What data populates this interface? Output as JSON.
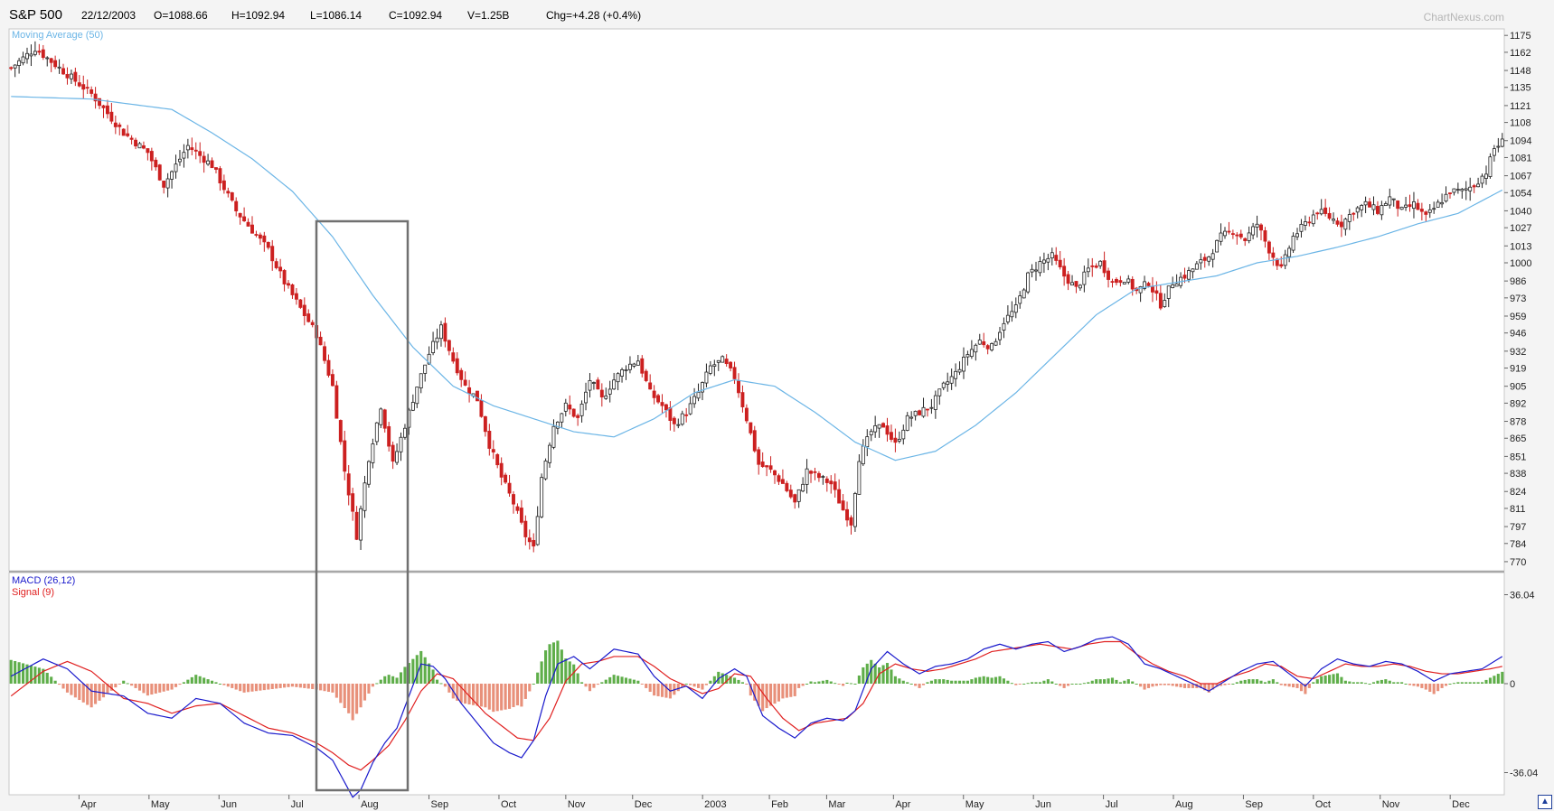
{
  "header": {
    "symbol": "S&P 500",
    "date": "22/12/2003",
    "open": "O=1088.66",
    "high": "H=1092.94",
    "low": "L=1086.14",
    "close": "C=1092.94",
    "volume": "V=1.25B",
    "change": "Chg=+4.28 (+0.4%)"
  },
  "watermark": "ChartNexus.com",
  "colors": {
    "down": "#cc2020",
    "up_border": "#222222",
    "moving_average": "#6bb5e6",
    "macd": "#1a1acc",
    "signal": "#e02020",
    "hist_pos": "#5fae4a",
    "hist_neg": "#e8907a",
    "highlight_box": "#707070"
  },
  "chart_data": [
    {
      "type": "candlestick",
      "legend": "Moving Average (50)",
      "ylim": [
        763,
        1180
      ],
      "yticks": [
        1175,
        1162,
        1148,
        1135,
        1121,
        1108,
        1094,
        1081,
        1067,
        1054,
        1040,
        1027,
        1013,
        1000,
        986,
        973,
        959,
        946,
        932,
        919,
        905,
        892,
        878,
        865,
        851,
        838,
        824,
        811,
        797,
        784,
        770
      ],
      "x_labels": [
        "Apr",
        "May",
        "Jun",
        "Jul",
        "Aug",
        "Sep",
        "Oct",
        "Nov",
        "Dec",
        "2003",
        "Feb",
        "Mar",
        "Apr",
        "May",
        "Jun",
        "Jul",
        "Aug",
        "Sep",
        "Oct",
        "Nov",
        "Dec"
      ],
      "close_keypoints": [
        [
          0,
          1150
        ],
        [
          6,
          1165
        ],
        [
          12,
          1150
        ],
        [
          20,
          1130
        ],
        [
          28,
          1100
        ],
        [
          34,
          1085
        ],
        [
          38,
          1060
        ],
        [
          44,
          1090
        ],
        [
          50,
          1075
        ],
        [
          56,
          1040
        ],
        [
          60,
          1025
        ],
        [
          64,
          1010
        ],
        [
          68,
          985
        ],
        [
          72,
          965
        ],
        [
          76,
          945
        ],
        [
          80,
          905
        ],
        [
          83,
          840
        ],
        [
          86,
          790
        ],
        [
          89,
          850
        ],
        [
          92,
          890
        ],
        [
          95,
          845
        ],
        [
          98,
          875
        ],
        [
          101,
          905
        ],
        [
          104,
          930
        ],
        [
          107,
          950
        ],
        [
          110,
          925
        ],
        [
          113,
          905
        ],
        [
          116,
          895
        ],
        [
          119,
          860
        ],
        [
          122,
          835
        ],
        [
          125,
          815
        ],
        [
          128,
          790
        ],
        [
          130,
          780
        ],
        [
          132,
          835
        ],
        [
          135,
          875
        ],
        [
          138,
          890
        ],
        [
          141,
          880
        ],
        [
          144,
          910
        ],
        [
          147,
          895
        ],
        [
          150,
          910
        ],
        [
          153,
          920
        ],
        [
          156,
          925
        ],
        [
          159,
          900
        ],
        [
          162,
          890
        ],
        [
          165,
          875
        ],
        [
          168,
          885
        ],
        [
          171,
          900
        ],
        [
          174,
          920
        ],
        [
          177,
          925
        ],
        [
          180,
          912
        ],
        [
          183,
          880
        ],
        [
          186,
          845
        ],
        [
          189,
          840
        ],
        [
          192,
          830
        ],
        [
          195,
          815
        ],
        [
          198,
          840
        ],
        [
          201,
          835
        ],
        [
          204,
          830
        ],
        [
          207,
          810
        ],
        [
          209,
          800
        ],
        [
          211,
          850
        ],
        [
          214,
          870
        ],
        [
          217,
          875
        ],
        [
          220,
          860
        ],
        [
          223,
          880
        ],
        [
          226,
          885
        ],
        [
          229,
          890
        ],
        [
          232,
          905
        ],
        [
          235,
          915
        ],
        [
          238,
          930
        ],
        [
          241,
          940
        ],
        [
          244,
          935
        ],
        [
          247,
          955
        ],
        [
          250,
          965
        ],
        [
          253,
          990
        ],
        [
          256,
          1000
        ],
        [
          259,
          1005
        ],
        [
          262,
          990
        ],
        [
          265,
          980
        ],
        [
          268,
          995
        ],
        [
          271,
          1000
        ],
        [
          274,
          985
        ],
        [
          277,
          988
        ],
        [
          280,
          978
        ],
        [
          283,
          985
        ],
        [
          286,
          968
        ],
        [
          289,
          985
        ],
        [
          292,
          990
        ],
        [
          295,
          998
        ],
        [
          298,
          1005
        ],
        [
          301,
          1020
        ],
        [
          304,
          1025
        ],
        [
          307,
          1018
        ],
        [
          310,
          1030
        ],
        [
          313,
          1010
        ],
        [
          316,
          995
        ],
        [
          319,
          1020
        ],
        [
          322,
          1030
        ],
        [
          325,
          1040
        ],
        [
          328,
          1035
        ],
        [
          331,
          1030
        ],
        [
          334,
          1040
        ],
        [
          337,
          1045
        ],
        [
          340,
          1040
        ],
        [
          343,
          1050
        ],
        [
          346,
          1040
        ],
        [
          349,
          1045
        ],
        [
          352,
          1035
        ],
        [
          355,
          1045
        ],
        [
          358,
          1055
        ],
        [
          361,
          1055
        ],
        [
          364,
          1060
        ],
        [
          367,
          1070
        ],
        [
          369,
          1088
        ],
        [
          371,
          1093
        ]
      ],
      "moving_average_keypoints": [
        [
          0,
          1128
        ],
        [
          20,
          1126
        ],
        [
          40,
          1118
        ],
        [
          50,
          1100
        ],
        [
          60,
          1080
        ],
        [
          70,
          1055
        ],
        [
          80,
          1020
        ],
        [
          90,
          975
        ],
        [
          100,
          935
        ],
        [
          110,
          905
        ],
        [
          120,
          890
        ],
        [
          130,
          880
        ],
        [
          140,
          870
        ],
        [
          150,
          866
        ],
        [
          160,
          880
        ],
        [
          170,
          900
        ],
        [
          180,
          910
        ],
        [
          190,
          905
        ],
        [
          200,
          885
        ],
        [
          210,
          862
        ],
        [
          220,
          848
        ],
        [
          230,
          855
        ],
        [
          240,
          875
        ],
        [
          250,
          900
        ],
        [
          260,
          930
        ],
        [
          270,
          960
        ],
        [
          280,
          980
        ],
        [
          290,
          985
        ],
        [
          300,
          990
        ],
        [
          310,
          1000
        ],
        [
          320,
          1005
        ],
        [
          330,
          1012
        ],
        [
          340,
          1020
        ],
        [
          350,
          1030
        ],
        [
          360,
          1038
        ],
        [
          371,
          1056
        ]
      ]
    },
    {
      "type": "line",
      "legend": [
        "MACD (26,12)",
        "Signal (9)"
      ],
      "ylim": [
        -45,
        45
      ],
      "yticks": [
        36.04,
        0,
        -36.04
      ],
      "macd_keypoints": [
        [
          0,
          3
        ],
        [
          8,
          10
        ],
        [
          14,
          6
        ],
        [
          20,
          -3
        ],
        [
          28,
          -5
        ],
        [
          34,
          -12
        ],
        [
          40,
          -14
        ],
        [
          46,
          -6
        ],
        [
          52,
          -8
        ],
        [
          58,
          -16
        ],
        [
          64,
          -20
        ],
        [
          70,
          -21
        ],
        [
          76,
          -26
        ],
        [
          80,
          -31
        ],
        [
          83,
          -40
        ],
        [
          85,
          -46
        ],
        [
          87,
          -43
        ],
        [
          90,
          -32
        ],
        [
          93,
          -24
        ],
        [
          96,
          -18
        ],
        [
          99,
          -5
        ],
        [
          102,
          8
        ],
        [
          105,
          7
        ],
        [
          108,
          2
        ],
        [
          112,
          -8
        ],
        [
          116,
          -16
        ],
        [
          120,
          -24
        ],
        [
          124,
          -28
        ],
        [
          127,
          -30
        ],
        [
          130,
          -23
        ],
        [
          133,
          -5
        ],
        [
          136,
          8
        ],
        [
          140,
          11
        ],
        [
          144,
          6
        ],
        [
          150,
          14
        ],
        [
          156,
          12
        ],
        [
          160,
          3
        ],
        [
          164,
          -3
        ],
        [
          168,
          -1
        ],
        [
          172,
          -6
        ],
        [
          176,
          2
        ],
        [
          180,
          6
        ],
        [
          183,
          3
        ],
        [
          187,
          -13
        ],
        [
          191,
          -18
        ],
        [
          195,
          -22
        ],
        [
          199,
          -16
        ],
        [
          203,
          -14
        ],
        [
          207,
          -15
        ],
        [
          210,
          -11
        ],
        [
          214,
          6
        ],
        [
          218,
          13
        ],
        [
          222,
          8
        ],
        [
          226,
          4
        ],
        [
          230,
          7
        ],
        [
          234,
          8
        ],
        [
          238,
          10
        ],
        [
          242,
          14
        ],
        [
          246,
          16
        ],
        [
          250,
          14
        ],
        [
          254,
          16
        ],
        [
          258,
          17
        ],
        [
          262,
          13
        ],
        [
          266,
          15
        ],
        [
          270,
          18
        ],
        [
          274,
          19
        ],
        [
          278,
          16
        ],
        [
          282,
          8
        ],
        [
          286,
          6
        ],
        [
          290,
          3
        ],
        [
          294,
          0
        ],
        [
          298,
          -3
        ],
        [
          302,
          1
        ],
        [
          306,
          5
        ],
        [
          310,
          8
        ],
        [
          314,
          9
        ],
        [
          318,
          4
        ],
        [
          322,
          -1
        ],
        [
          326,
          6
        ],
        [
          330,
          10
        ],
        [
          334,
          8
        ],
        [
          338,
          7
        ],
        [
          342,
          9
        ],
        [
          346,
          8
        ],
        [
          350,
          5
        ],
        [
          354,
          1
        ],
        [
          358,
          4
        ],
        [
          362,
          5
        ],
        [
          366,
          6
        ],
        [
          369,
          9
        ],
        [
          371,
          11
        ]
      ],
      "signal_keypoints": [
        [
          0,
          -5
        ],
        [
          8,
          5
        ],
        [
          14,
          9
        ],
        [
          20,
          5
        ],
        [
          28,
          -6
        ],
        [
          34,
          -8
        ],
        [
          40,
          -12
        ],
        [
          46,
          -9
        ],
        [
          52,
          -8
        ],
        [
          58,
          -13
        ],
        [
          64,
          -18
        ],
        [
          70,
          -20
        ],
        [
          76,
          -24
        ],
        [
          80,
          -28
        ],
        [
          84,
          -33
        ],
        [
          87,
          -35
        ],
        [
          90,
          -31
        ],
        [
          94,
          -25
        ],
        [
          98,
          -15
        ],
        [
          102,
          -3
        ],
        [
          106,
          4
        ],
        [
          110,
          2
        ],
        [
          114,
          -5
        ],
        [
          118,
          -12
        ],
        [
          122,
          -17
        ],
        [
          126,
          -22
        ],
        [
          130,
          -23
        ],
        [
          134,
          -14
        ],
        [
          138,
          1
        ],
        [
          142,
          8
        ],
        [
          146,
          9
        ],
        [
          150,
          11
        ],
        [
          156,
          11
        ],
        [
          160,
          7
        ],
        [
          164,
          2
        ],
        [
          168,
          -1
        ],
        [
          172,
          -4
        ],
        [
          176,
          -2
        ],
        [
          180,
          4
        ],
        [
          184,
          3
        ],
        [
          188,
          -6
        ],
        [
          192,
          -14
        ],
        [
          196,
          -19
        ],
        [
          200,
          -16
        ],
        [
          204,
          -15
        ],
        [
          208,
          -14
        ],
        [
          212,
          -8
        ],
        [
          216,
          4
        ],
        [
          220,
          8
        ],
        [
          224,
          6
        ],
        [
          228,
          5
        ],
        [
          232,
          6
        ],
        [
          236,
          8
        ],
        [
          240,
          10
        ],
        [
          244,
          13
        ],
        [
          248,
          14
        ],
        [
          252,
          15
        ],
        [
          256,
          16
        ],
        [
          260,
          15
        ],
        [
          264,
          14
        ],
        [
          268,
          16
        ],
        [
          272,
          17
        ],
        [
          276,
          17
        ],
        [
          280,
          12
        ],
        [
          284,
          8
        ],
        [
          288,
          5
        ],
        [
          292,
          3
        ],
        [
          296,
          0
        ],
        [
          300,
          0
        ],
        [
          304,
          3
        ],
        [
          308,
          5
        ],
        [
          312,
          8
        ],
        [
          316,
          7
        ],
        [
          320,
          3
        ],
        [
          324,
          2
        ],
        [
          328,
          5
        ],
        [
          332,
          8
        ],
        [
          336,
          7
        ],
        [
          340,
          7
        ],
        [
          344,
          8
        ],
        [
          348,
          7
        ],
        [
          352,
          5
        ],
        [
          356,
          4
        ],
        [
          360,
          4
        ],
        [
          364,
          5
        ],
        [
          368,
          6
        ],
        [
          371,
          7
        ]
      ]
    }
  ]
}
